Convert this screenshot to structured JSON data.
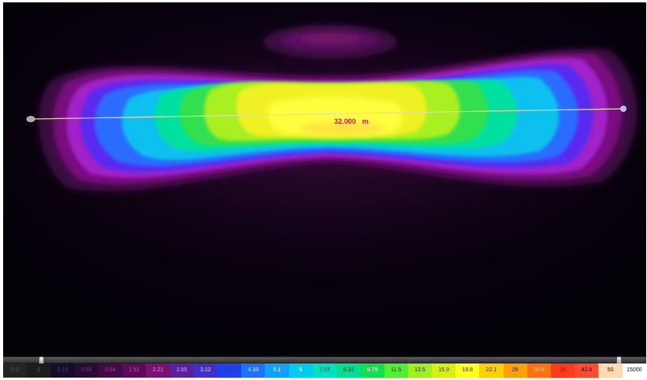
{
  "viewport": {
    "measurement": {
      "value": "32.000",
      "unit": "m"
    }
  },
  "legend": {
    "stops": [
      {
        "label": "0.0",
        "color": "#242424",
        "text_color": "#5a5a5a"
      },
      {
        "label": "0",
        "color": "#1c1c1c",
        "text_color": "#5a5a5a"
      },
      {
        "label": "0.10",
        "color": "#160d2a",
        "text_color": "#4a3a80"
      },
      {
        "label": "0.50",
        "color": "#2c0a36",
        "text_color": "#6a3a9a"
      },
      {
        "label": "0.84",
        "color": "#440a46",
        "text_color": "#9a3aa0"
      },
      {
        "label": "1.51",
        "color": "#5e0a5a",
        "text_color": "#c050c0"
      },
      {
        "label": "2.21",
        "color": "#7a1070",
        "text_color": "#ee80ee"
      },
      {
        "label": "2.65",
        "color": "#5a20a0",
        "text_color": "#d0a0ff"
      },
      {
        "label": "3.12",
        "color": "#4030c8",
        "text_color": "#e0d0ff"
      },
      {
        "label": "3.66",
        "color": "#2040ee",
        "text_color": "#2a2acc"
      },
      {
        "label": "4.33",
        "color": "#2070ff",
        "text_color": "#e6f0ff"
      },
      {
        "label": "5.1",
        "color": "#10a0ff",
        "text_color": "#ffffff"
      },
      {
        "label": "6",
        "color": "#00ccf0",
        "text_color": "#ffffff"
      },
      {
        "label": "7.07",
        "color": "#00e0c0",
        "text_color": "#1a3a3a"
      },
      {
        "label": "8.32",
        "color": "#00e090",
        "text_color": "#1a3a2a"
      },
      {
        "label": "9.79",
        "color": "#10e050",
        "text_color": "#ffffff"
      },
      {
        "label": "11.5",
        "color": "#50f030",
        "text_color": "#1a3a10"
      },
      {
        "label": "13.5",
        "color": "#a0f020",
        "text_color": "#203a10"
      },
      {
        "label": "15.9",
        "color": "#d8f010",
        "text_color": "#303a00"
      },
      {
        "label": "18.8",
        "color": "#ffff20",
        "text_color": "#303000"
      },
      {
        "label": "22.1",
        "color": "#ffd000",
        "text_color": "#303000"
      },
      {
        "label": "26",
        "color": "#ffa000",
        "text_color": "#2a1a00"
      },
      {
        "label": "30.6",
        "color": "#ff7010",
        "text_color": "#ffd0a0"
      },
      {
        "label": "36",
        "color": "#ff3a1a",
        "text_color": "#b01010"
      },
      {
        "label": "42.4",
        "color": "#ff4a30",
        "text_color": "#200800"
      },
      {
        "label": "50",
        "color": "#ffd8b0",
        "text_color": "#201008"
      },
      {
        "label": "15000",
        "color": "#ffffff",
        "text_color": "#101010"
      }
    ]
  }
}
